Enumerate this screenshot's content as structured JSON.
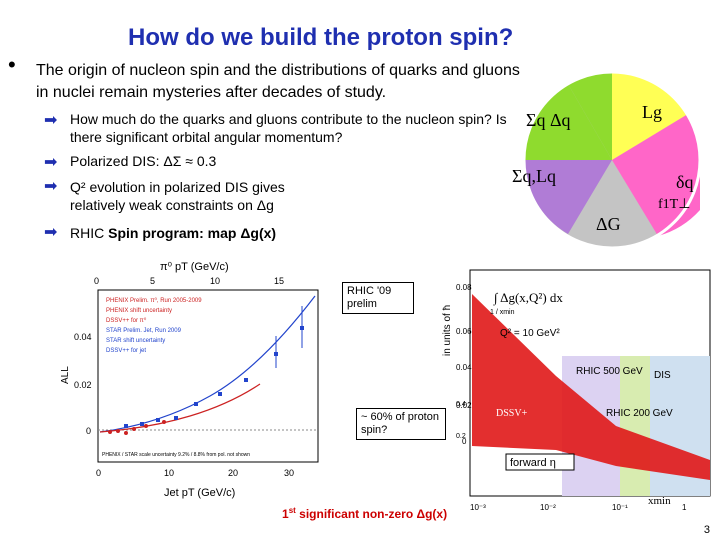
{
  "title": "How do we build the proton spin?",
  "intro": {
    "bullet": "•",
    "text": "The origin of nucleon spin and the distributions of quarks and gluons in nuclei remain mysteries after decades of study."
  },
  "arrow_glyph": "➡",
  "points": {
    "p1": "How much do the quarks and gluons contribute to the nucleon spin? Is there significant orbital angular momentum?",
    "p2": "Polarized DIS:  ΔΣ ≈ 0.3",
    "p3": "Q² evolution in polarized DIS gives relatively weak constraints on Δg",
    "p4_prefix": "RHIC",
    "p4_rest": " Spin program: map Δg(x)"
  },
  "puzzle": {
    "pieces": [
      "Σq Δq",
      "Lg",
      "Σq,Lq",
      "δq",
      "ΔG",
      "f1T⊥"
    ],
    "colors": {
      "green": "#8fdb2e",
      "yellow": "#ffff55",
      "violet": "#b07cd6",
      "gray": "#c4c4c4",
      "pink": "#ff66c8"
    }
  },
  "left_plot": {
    "top_axis_label": "π⁰ pT (GeV/c)",
    "top_ticks": [
      "0",
      "5",
      "10",
      "15"
    ],
    "ylabel": "ALL",
    "y_ticks": [
      "0.04",
      "0.02",
      "0"
    ],
    "bottom_ticks": [
      "0",
      "10",
      "20",
      "30"
    ],
    "xlabel": "Jet pT (GeV/c)",
    "legend": [
      "PHENIX Prelim. π⁰, Run 2005-2009",
      "PHENIX shift uncertainty",
      "DSSV++ for π⁰",
      "STAR Prelim. Jet, Run 2009",
      "STAR shift uncertainty",
      "DSSV++ for jet"
    ],
    "footnote": "PHENIX / STAR scale uncertainty 9.2% / 8.8% from pol. not shown"
  },
  "rhic_label": "RHIC '09 prelim",
  "right_plot": {
    "integral": "∫ Δg(x,Q²) dx",
    "limits": "1 / xmin",
    "q2": "Q² = 10 GeV²",
    "ylabel": "in units of ħ",
    "y_ticks": [
      "0.08",
      "0.06",
      "0.04",
      "0.02",
      "0"
    ],
    "x_ticks": [
      "10⁻³",
      "10⁻²",
      "10⁻¹",
      "1"
    ],
    "xlabel": "xmin",
    "extra_y": [
      "0.4",
      "0.2"
    ],
    "band_label": "DSSV+",
    "rhic500": "RHIC 500 GeV",
    "dis": "DIS",
    "rhic200": "RHIC 200 GeV",
    "forward": "forward η"
  },
  "callout_percent": "~ 60% of proton spin?",
  "bottom_note": {
    "first": "1",
    "sup": "st",
    "rest": " significant non-zero Δg(x)"
  },
  "page_number": "3"
}
